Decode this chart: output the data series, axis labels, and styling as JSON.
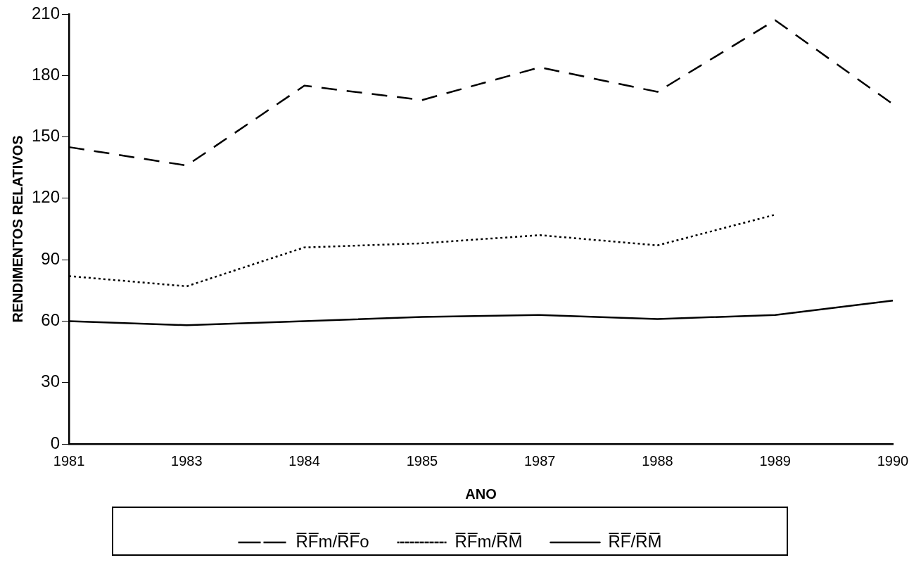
{
  "chart_data": {
    "type": "line",
    "xlabel": "ANO",
    "ylabel": "RENDIMENTOS RELATIVOS",
    "categories": [
      "1981",
      "1983",
      "1984",
      "1985",
      "1987",
      "1988",
      "1989",
      "1990"
    ],
    "ylim": [
      0,
      210
    ],
    "yticks": [
      0,
      30,
      60,
      90,
      120,
      150,
      180,
      210
    ],
    "grid": false,
    "legend": "bottom",
    "marker": "none",
    "series": [
      {
        "name": "R̅F̅m/R̅F̅o",
        "color": "#000000",
        "line_style": "dashed",
        "values": [
          145,
          136,
          175,
          168,
          184,
          172,
          207,
          166
        ]
      },
      {
        "name": "R̅F̅m/R̅M̅",
        "color": "#000000",
        "line_style": "dotted",
        "values": [
          82,
          77,
          96,
          98,
          102,
          97,
          112,
          null
        ]
      },
      {
        "name": "R̅F̅/R̅M̅",
        "color": "#000000",
        "line_style": "solid",
        "values": [
          60,
          58,
          60,
          62,
          63,
          61,
          63,
          70
        ]
      }
    ]
  }
}
